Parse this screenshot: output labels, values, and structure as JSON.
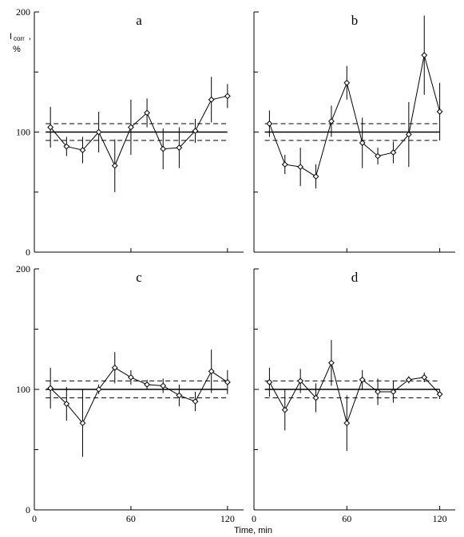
{
  "figure": {
    "ylabel_main": "I",
    "ylabel_sub": "corr",
    "ylabel_comma": ",",
    "ylabel_unit": "%",
    "xlabel": "Time, min",
    "x_ticks": [
      "0",
      "60",
      "120"
    ],
    "y_ticks": [
      "0",
      "100",
      "200"
    ]
  },
  "chart_data": [
    {
      "type": "line",
      "panel": "a",
      "xlim": [
        0,
        130
      ],
      "ylim": [
        0,
        200
      ],
      "reference_line": 100,
      "band": [
        93,
        107
      ],
      "series": [
        {
          "x": [
            10,
            20,
            30,
            40,
            50,
            60,
            70,
            80,
            90,
            100,
            110,
            120
          ],
          "y": [
            104,
            88,
            85,
            100,
            72,
            104,
            116,
            86,
            87,
            101,
            127,
            130
          ],
          "err": [
            17,
            8,
            11,
            17,
            22,
            23,
            12,
            17,
            17,
            10,
            19,
            10
          ]
        }
      ]
    },
    {
      "type": "line",
      "panel": "b",
      "xlim": [
        0,
        130
      ],
      "ylim": [
        0,
        200
      ],
      "reference_line": 100,
      "band": [
        93,
        107
      ],
      "series": [
        {
          "x": [
            10,
            20,
            30,
            40,
            50,
            60,
            70,
            80,
            90,
            100,
            110,
            120
          ],
          "y": [
            107,
            73,
            71,
            63,
            109,
            141,
            91,
            80,
            83,
            98,
            164,
            117
          ],
          "err": [
            11,
            8,
            16,
            10,
            13,
            14,
            21,
            7,
            9,
            27,
            33,
            24
          ]
        }
      ]
    },
    {
      "type": "line",
      "panel": "c",
      "xlim": [
        0,
        130
      ],
      "ylim": [
        0,
        200
      ],
      "reference_line": 100,
      "band": [
        93,
        107
      ],
      "series": [
        {
          "x": [
            10,
            20,
            30,
            40,
            50,
            60,
            70,
            80,
            90,
            100,
            110,
            120
          ],
          "y": [
            101,
            88,
            72,
            100,
            118,
            110,
            104,
            103,
            95,
            90,
            115,
            106
          ],
          "err": [
            17,
            14,
            28,
            4,
            13,
            6,
            4,
            6,
            9,
            8,
            18,
            10
          ]
        }
      ]
    },
    {
      "type": "line",
      "panel": "d",
      "xlim": [
        0,
        130
      ],
      "ylim": [
        0,
        200
      ],
      "reference_line": 100,
      "band": [
        93,
        107
      ],
      "series": [
        {
          "x": [
            10,
            20,
            30,
            40,
            50,
            60,
            70,
            80,
            90,
            100,
            110,
            120
          ],
          "y": [
            106,
            83,
            107,
            93,
            122,
            72,
            108,
            98,
            98,
            108,
            110,
            96
          ],
          "err": [
            12,
            17,
            10,
            12,
            19,
            23,
            8,
            11,
            9,
            3,
            4,
            4
          ]
        }
      ]
    }
  ]
}
